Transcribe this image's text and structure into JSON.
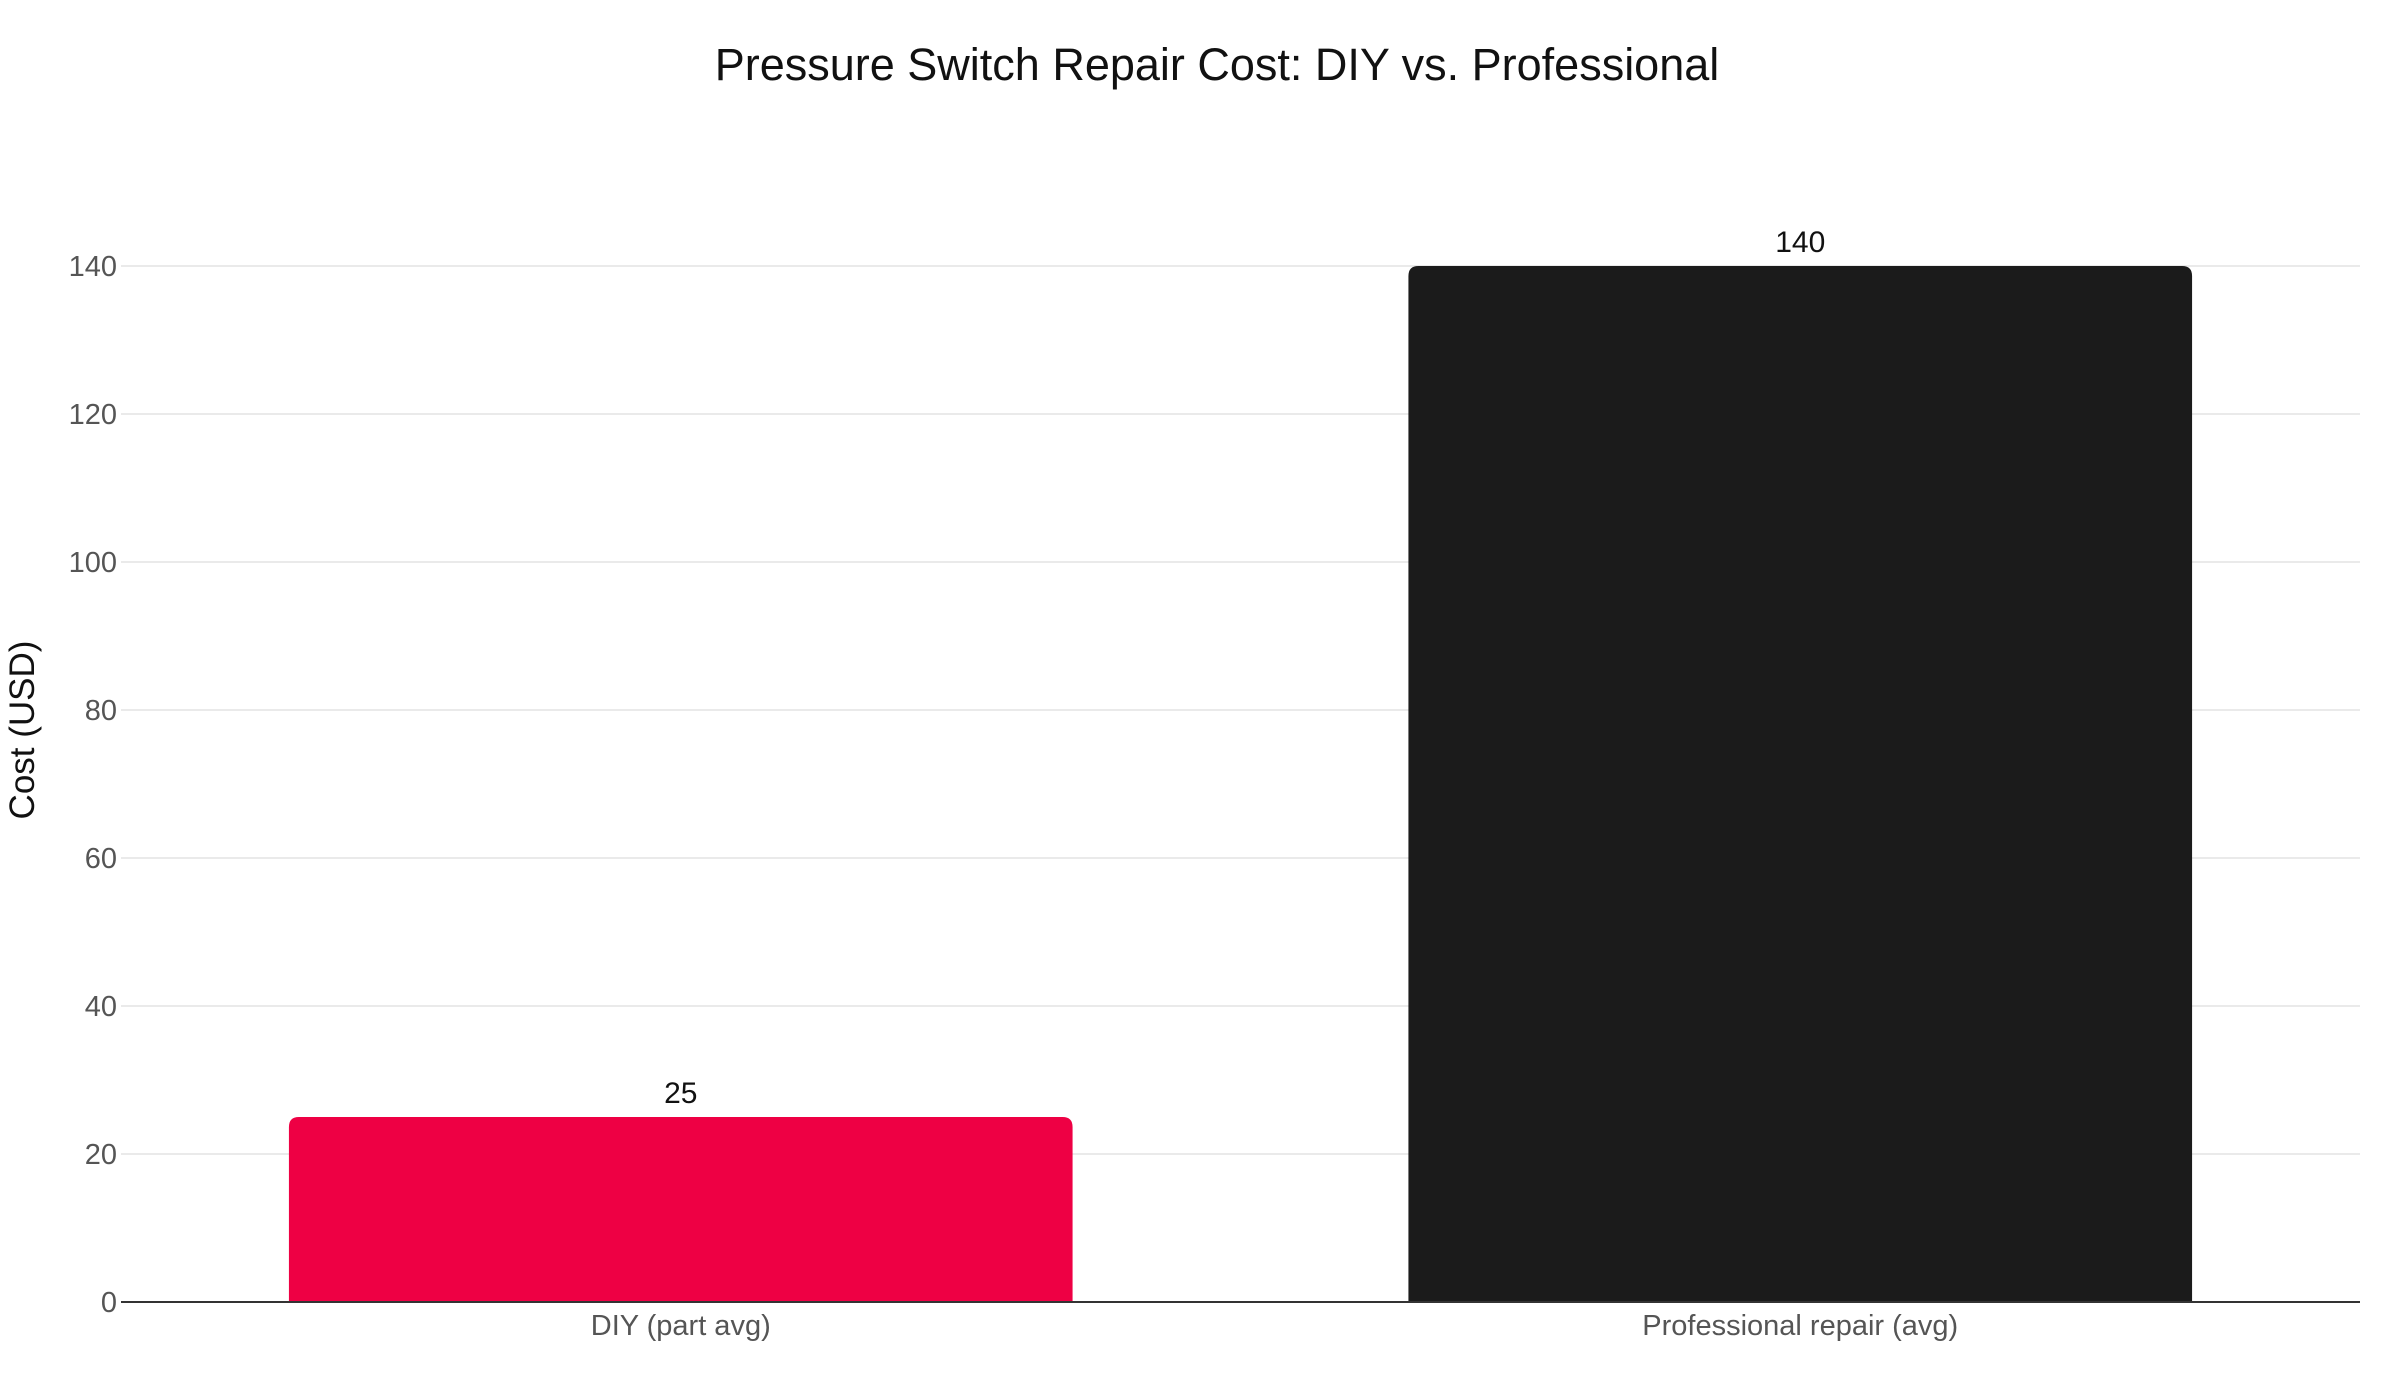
{
  "chart_data": {
    "type": "bar",
    "title": "Pressure Switch Repair Cost: DIY vs. Professional",
    "xlabel": "",
    "ylabel": "Cost (USD)",
    "categories": [
      "DIY (part avg)",
      "Professional repair (avg)"
    ],
    "values": [
      25,
      140
    ],
    "data_labels": [
      "25",
      "140"
    ],
    "colors": [
      "#ee0044",
      "#1b1b1b"
    ],
    "ylim": [
      0,
      140
    ],
    "yticks": [
      0,
      20,
      40,
      60,
      80,
      100,
      120,
      140
    ],
    "grid": true,
    "legend": "none"
  }
}
